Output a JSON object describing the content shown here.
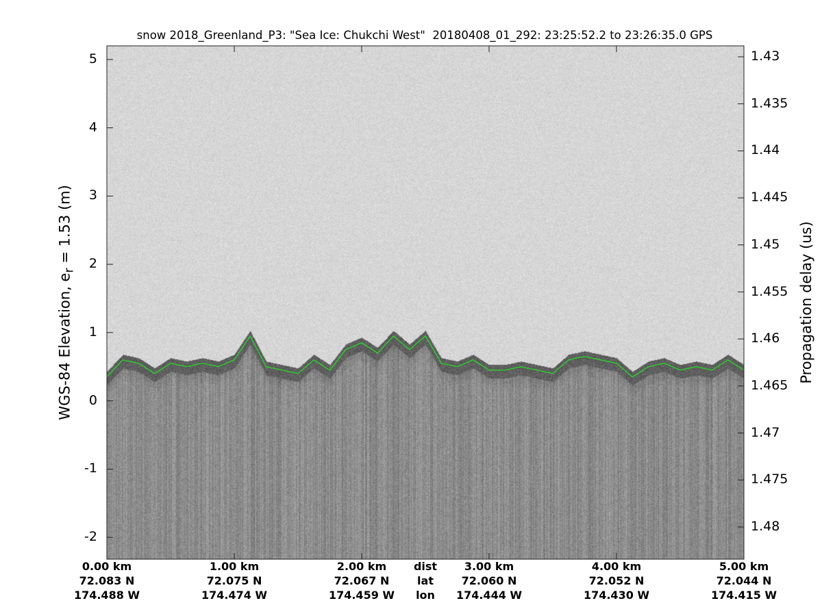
{
  "chart_data": {
    "type": "line",
    "title": "snow 2018_Greenland_P3: \"Sea Ice: Chukchi West\"  20180408_01_292: 23:25:52.2 to 23:26:35.0 GPS",
    "ylabel_prefix": "WGS-84 Elevation, e",
    "ylabel_sub": "r",
    "ylabel_suffix": " = 1.53 (m)",
    "ylabel_right": "Propagation delay (us)",
    "ylim": [
      -2.32,
      5.2
    ],
    "xlim_km": [
      0,
      5
    ],
    "yticks_left": [
      "5",
      "4",
      "3",
      "2",
      "1",
      "0",
      "-1",
      "-2"
    ],
    "yticks_left_values": [
      5,
      4,
      3,
      2,
      1,
      0,
      -1,
      -2
    ],
    "yticks_right": [
      "1.43",
      "1.435",
      "1.44",
      "1.445",
      "1.45",
      "1.455",
      "1.46",
      "1.465",
      "1.47",
      "1.475",
      "1.48"
    ],
    "x_row_labels": [
      "dist",
      "lat",
      "lon"
    ],
    "xticks": [
      {
        "km": 0,
        "dist": "0.00 km",
        "lat": "72.083 N",
        "lon": "174.488 W"
      },
      {
        "km": 1,
        "dist": "1.00 km",
        "lat": "72.075 N",
        "lon": "174.474 W"
      },
      {
        "km": 2,
        "dist": "2.00 km",
        "lat": "72.067 N",
        "lon": "174.459 W"
      },
      {
        "km": 3,
        "dist": "3.00 km",
        "lat": "72.060 N",
        "lon": "174.444 W"
      },
      {
        "km": 4,
        "dist": "4.00 km",
        "lat": "72.052 N",
        "lon": "174.430 W"
      },
      {
        "km": 5,
        "dist": "5.00 km",
        "lat": "72.044 N",
        "lon": "174.415 W"
      }
    ],
    "surface_series": {
      "color": "#22dd22",
      "x_km": [
        0,
        0.125,
        0.25,
        0.375,
        0.5,
        0.625,
        0.75,
        0.875,
        1.0,
        1.125,
        1.25,
        1.375,
        1.5,
        1.625,
        1.75,
        1.875,
        2.0,
        2.125,
        2.25,
        2.375,
        2.5,
        2.625,
        2.75,
        2.875,
        3.0,
        3.125,
        3.25,
        3.375,
        3.5,
        3.625,
        3.75,
        3.875,
        4.0,
        4.125,
        4.25,
        4.375,
        4.5,
        4.625,
        4.75,
        4.875,
        5.0
      ],
      "elevation_m": [
        0.35,
        0.6,
        0.55,
        0.4,
        0.55,
        0.5,
        0.55,
        0.5,
        0.6,
        0.95,
        0.5,
        0.45,
        0.4,
        0.6,
        0.45,
        0.75,
        0.85,
        0.7,
        0.95,
        0.75,
        0.95,
        0.55,
        0.5,
        0.6,
        0.45,
        0.45,
        0.5,
        0.45,
        0.4,
        0.6,
        0.65,
        0.6,
        0.55,
        0.35,
        0.5,
        0.55,
        0.45,
        0.5,
        0.45,
        0.6,
        0.45
      ]
    },
    "colors": {
      "air": "#d6d6d6",
      "subsurface": "#8c8c8c"
    },
    "grid": false
  }
}
